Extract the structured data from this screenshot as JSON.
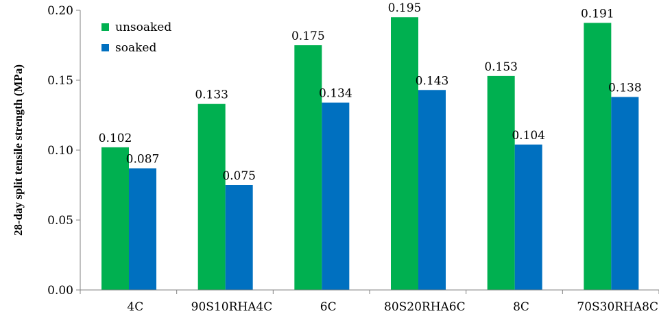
{
  "chart_data": {
    "type": "bar",
    "categories": [
      "4C",
      "90S10RHA4C",
      "6C",
      "80S20RHA6C",
      "8C",
      "70S30RHA8C"
    ],
    "series": [
      {
        "name": "unsoaked",
        "color": "#00b050",
        "values": [
          0.102,
          0.133,
          0.175,
          0.195,
          0.153,
          0.191
        ],
        "labels": [
          "0.102",
          "0.133",
          "0.175",
          "0.195",
          "0.153",
          "0.191"
        ]
      },
      {
        "name": "soaked",
        "color": "#0070c0",
        "values": [
          0.087,
          0.075,
          0.134,
          0.143,
          0.104,
          0.138
        ],
        "labels": [
          "0.087",
          "0.075",
          "0.134",
          "0.143",
          "0.104",
          "0.138"
        ]
      }
    ],
    "ylabel": "28-day split tensile strength (MPa)",
    "xlabel": "",
    "ylim": [
      0,
      0.2
    ],
    "yticks": [
      "0.00",
      "0.05",
      "0.10",
      "0.15",
      "0.20"
    ],
    "grid": false,
    "legend_position": "top-left"
  }
}
